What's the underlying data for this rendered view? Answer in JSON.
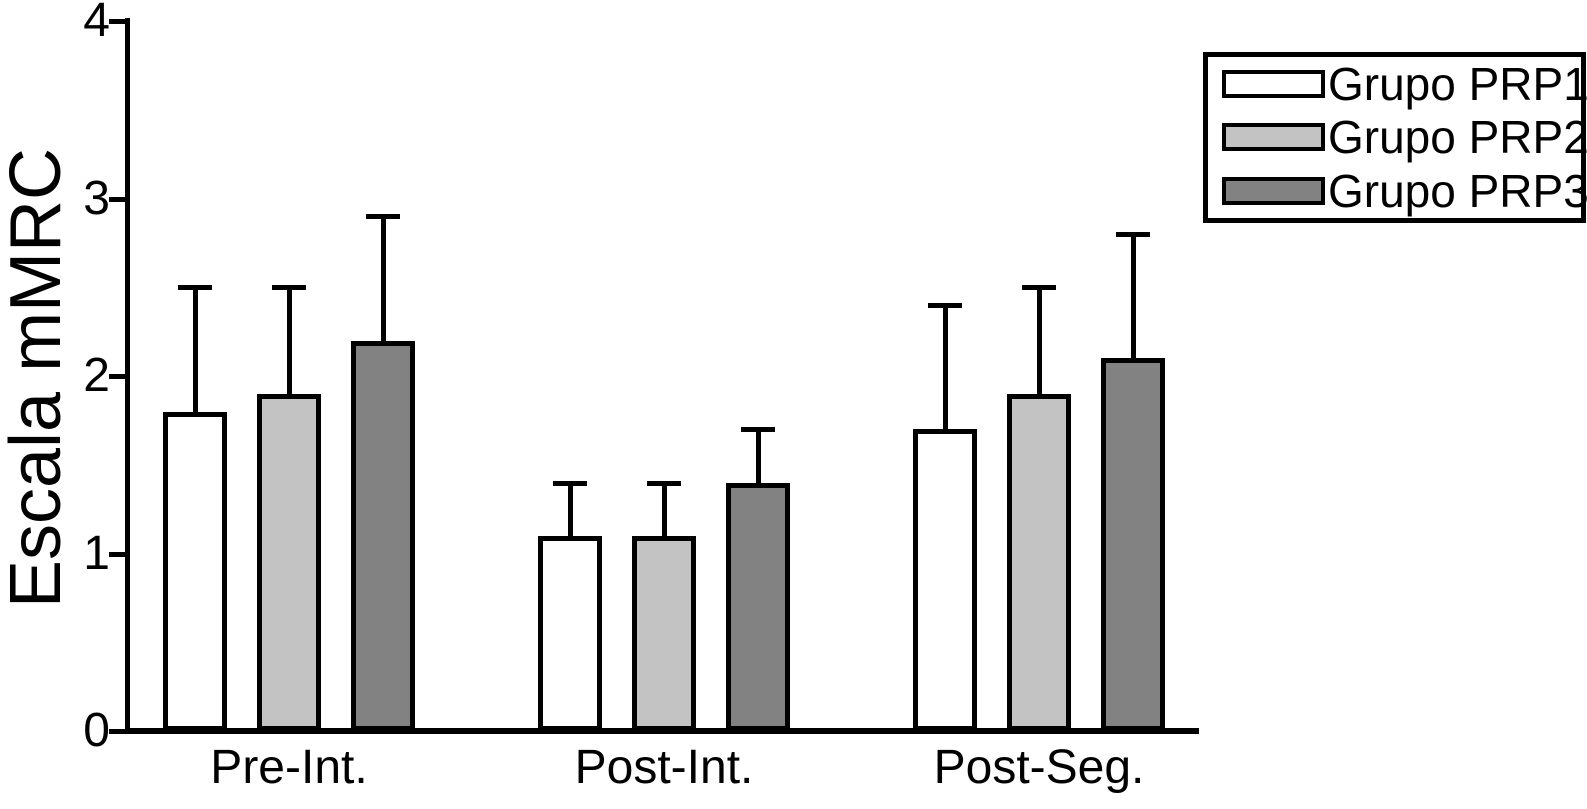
{
  "chart_data": {
    "type": "bar",
    "title": "",
    "ylabel": "Escala mMRC",
    "xlabel": "",
    "ylim": [
      0,
      4
    ],
    "yticks": [
      "0",
      "1",
      "2",
      "3",
      "4"
    ],
    "categories": [
      "Pre-Int.",
      "Post-Int.",
      "Post-Seg."
    ],
    "series": [
      {
        "name": "Grupo PRP1",
        "fill": "#ffffff",
        "values": [
          1.8,
          1.1,
          1.7
        ],
        "errors_upper": [
          0.7,
          0.3,
          0.7
        ]
      },
      {
        "name": "Grupo PRP2",
        "fill": "#c3c3c3",
        "values": [
          1.9,
          1.1,
          1.9
        ],
        "errors_upper": [
          0.6,
          0.3,
          0.6
        ]
      },
      {
        "name": "Grupo PRP3",
        "fill": "#828282",
        "values": [
          2.2,
          1.4,
          2.1
        ],
        "errors_upper": [
          0.7,
          0.3,
          0.7
        ]
      }
    ],
    "legend": {
      "position": "top-right",
      "labels": [
        "Grupo PRP1",
        "Grupo PRP2",
        "Grupo PRP3"
      ]
    },
    "error_bars": "upper-only",
    "grid": false,
    "colors": {
      "axis": "#000000",
      "text": "#000000",
      "background": "#ffffff"
    }
  }
}
